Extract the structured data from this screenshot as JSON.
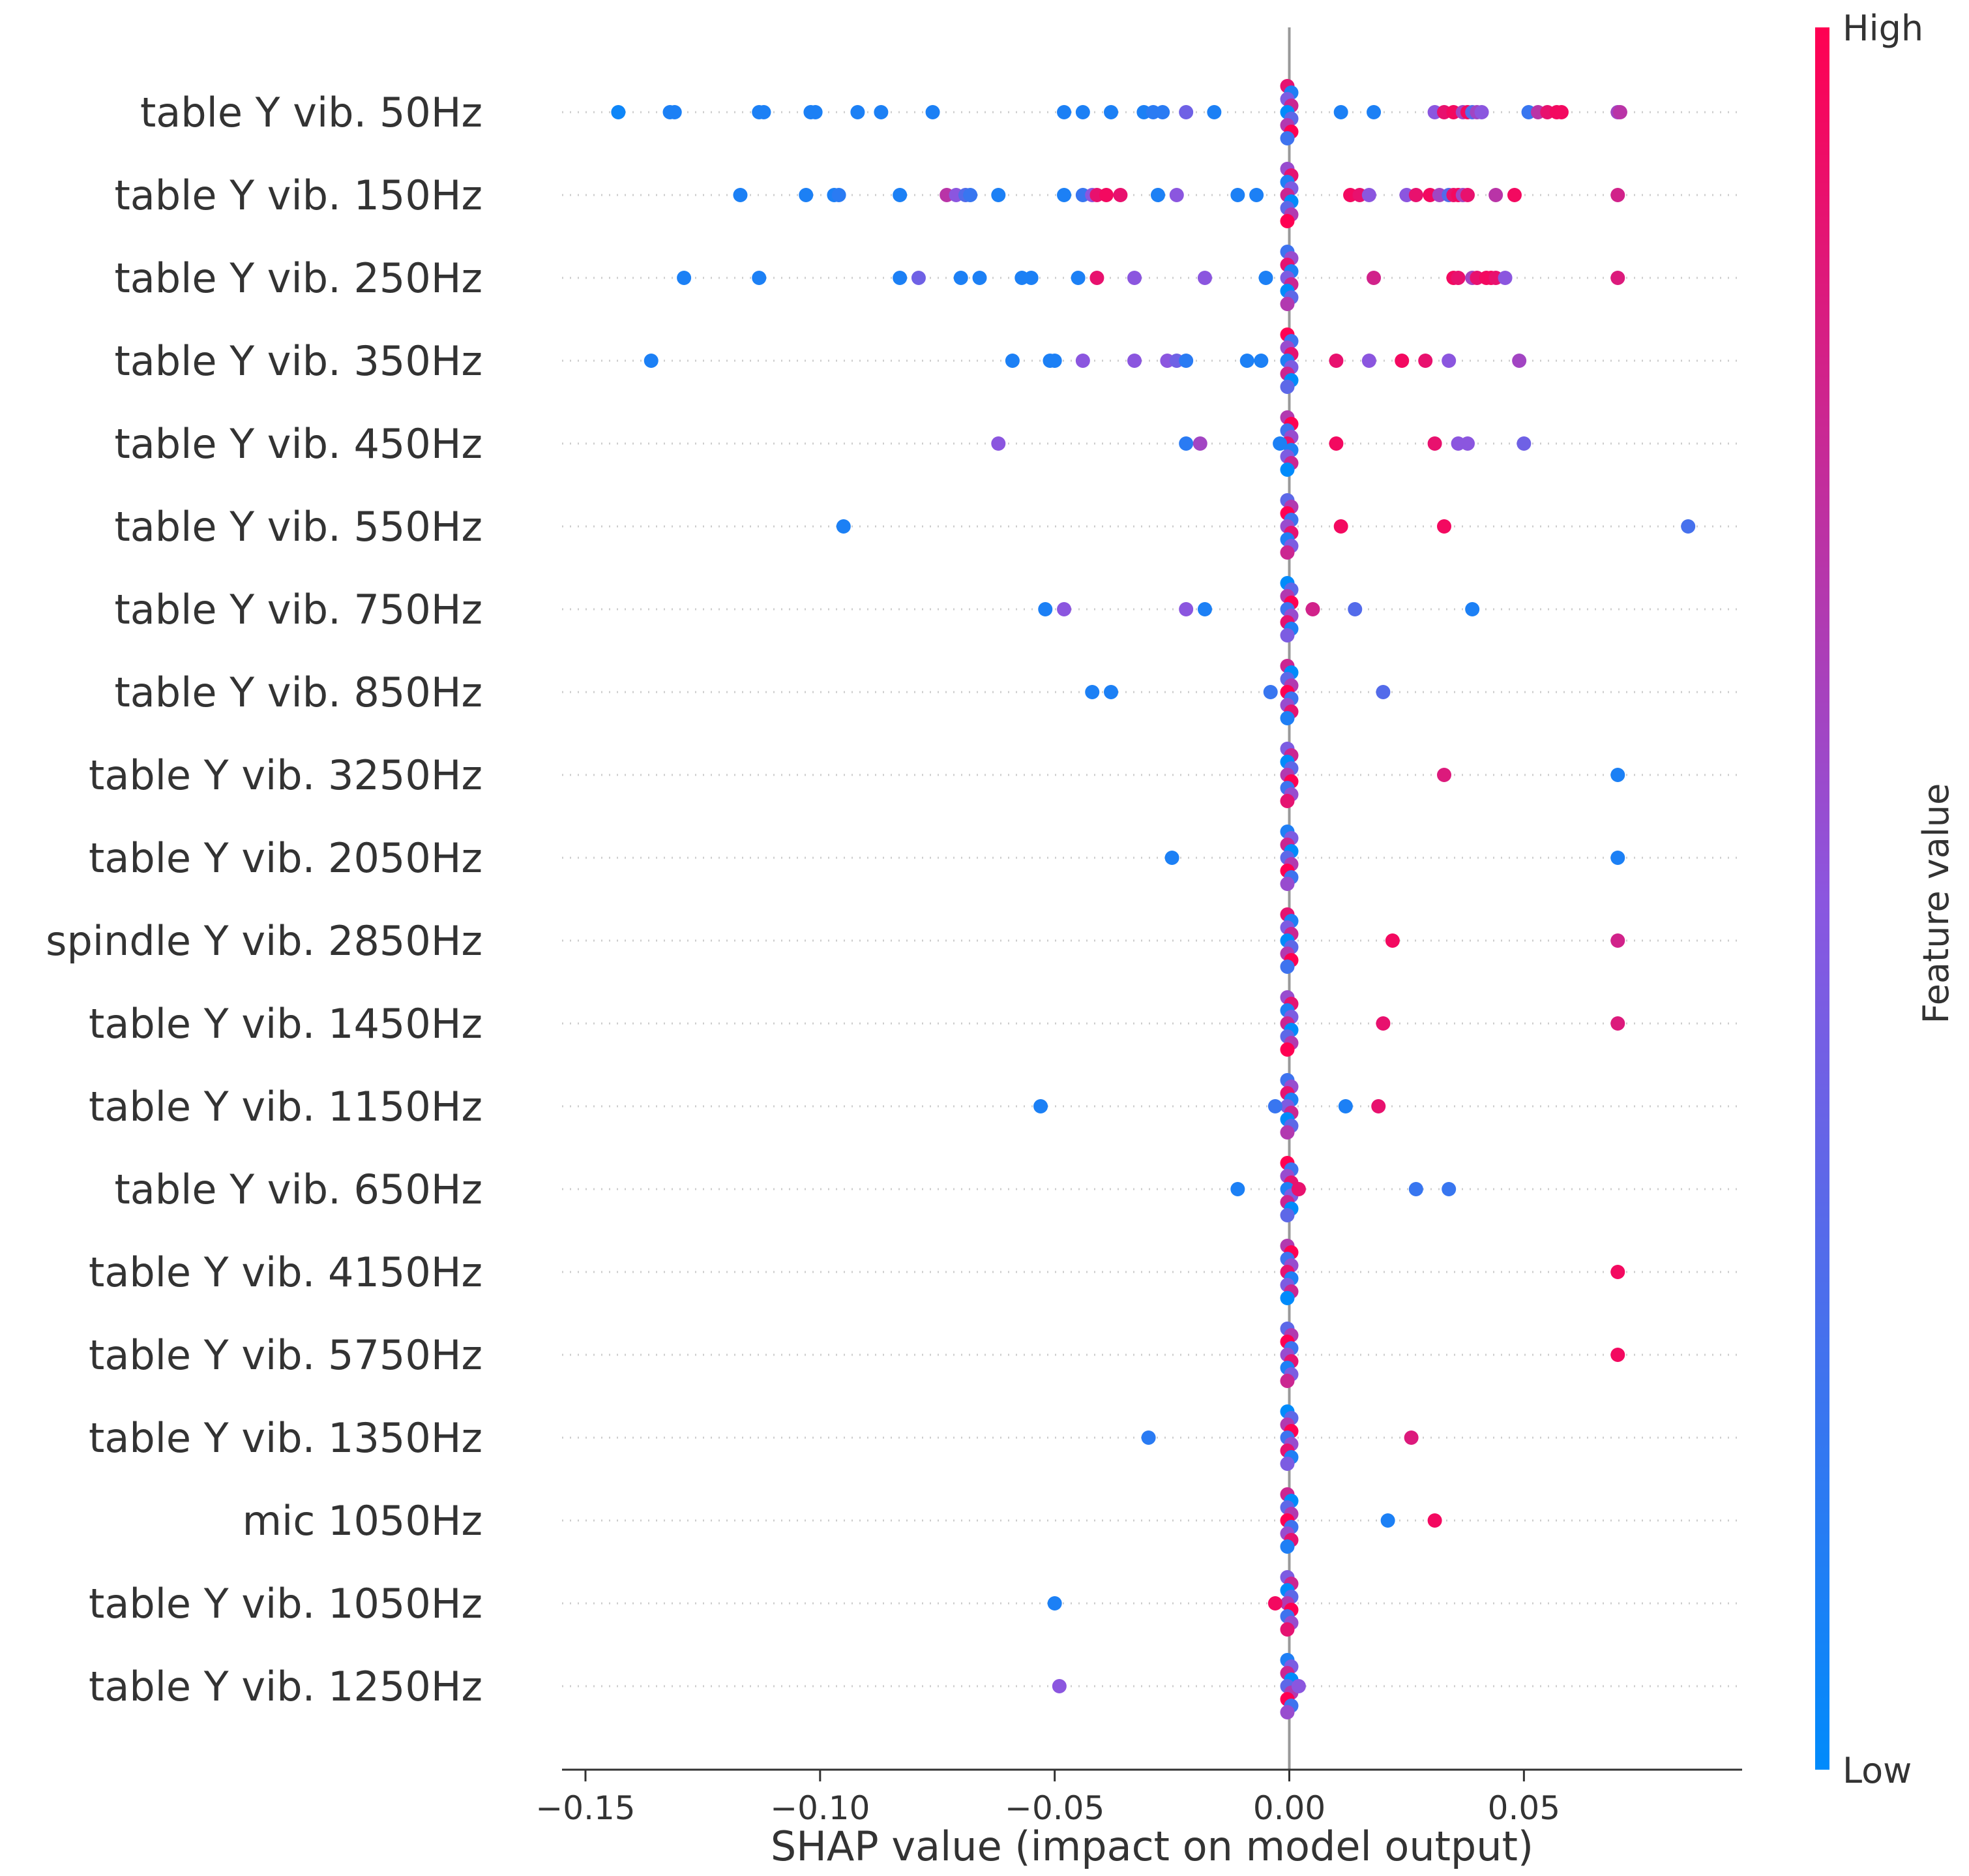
{
  "chart_data": {
    "type": "scatter",
    "subtype": "shap-beeswarm-summary",
    "xlabel": "SHAP value (impact on model output)",
    "xlim": [
      -0.155,
      0.0965
    ],
    "xticks": [
      -0.15,
      -0.1,
      -0.05,
      0.0,
      0.05
    ],
    "xtick_labels": [
      "−0.15",
      "−0.10",
      "−0.05",
      "0.00",
      "0.05"
    ],
    "colorbar": {
      "label": "Feature value",
      "high_label": "High",
      "low_label": "Low",
      "high_color": "#ff0052",
      "mid_color": "#8b56df",
      "low_color": "#008bfb"
    },
    "features": [
      {
        "name": "table Y vib. 50Hz",
        "points": [
          [
            -0.143,
            0.05
          ],
          [
            -0.132,
            0.1
          ],
          [
            -0.131,
            0.1
          ],
          [
            -0.113,
            0.1
          ],
          [
            -0.112,
            0.1
          ],
          [
            -0.102,
            0.1
          ],
          [
            -0.101,
            0.1
          ],
          [
            -0.092,
            0.1
          ],
          [
            -0.087,
            0.1
          ],
          [
            -0.076,
            0.1
          ],
          [
            -0.048,
            0.1
          ],
          [
            -0.044,
            0.1
          ],
          [
            -0.038,
            0.1
          ],
          [
            -0.031,
            0.1
          ],
          [
            -0.029,
            0.15
          ],
          [
            -0.027,
            0.15
          ],
          [
            -0.022,
            0.4
          ],
          [
            -0.016,
            0.1
          ],
          [
            0.011,
            0.1
          ],
          [
            0.018,
            0.1
          ],
          [
            0.031,
            0.5
          ],
          [
            0.033,
            0.9
          ],
          [
            0.035,
            0.95
          ],
          [
            0.037,
            0.6
          ],
          [
            0.038,
            0.95
          ],
          [
            0.039,
            0.3
          ],
          [
            0.04,
            0.6
          ],
          [
            0.041,
            0.5
          ],
          [
            0.051,
            0.2
          ],
          [
            0.053,
            0.7
          ],
          [
            0.055,
            0.9
          ],
          [
            0.057,
            0.95
          ],
          [
            0.058,
            0.95
          ],
          [
            0.07,
            0.6
          ],
          [
            0.0705,
            0.7
          ]
        ]
      },
      {
        "name": "table Y vib. 150Hz",
        "points": [
          [
            -0.117,
            0.1
          ],
          [
            -0.103,
            0.1
          ],
          [
            -0.097,
            0.1
          ],
          [
            -0.096,
            0.15
          ],
          [
            -0.083,
            0.1
          ],
          [
            -0.073,
            0.7
          ],
          [
            -0.071,
            0.5
          ],
          [
            -0.069,
            0.3
          ],
          [
            -0.068,
            0.2
          ],
          [
            -0.062,
            0.1
          ],
          [
            -0.048,
            0.1
          ],
          [
            -0.044,
            0.2
          ],
          [
            -0.042,
            0.5
          ],
          [
            -0.041,
            0.9
          ],
          [
            -0.039,
            0.95
          ],
          [
            -0.036,
            0.9
          ],
          [
            -0.028,
            0.1
          ],
          [
            -0.024,
            0.5
          ],
          [
            -0.011,
            0.1
          ],
          [
            -0.007,
            0.1
          ],
          [
            0.013,
            0.95
          ],
          [
            0.015,
            0.9
          ],
          [
            0.017,
            0.5
          ],
          [
            0.025,
            0.5
          ],
          [
            0.027,
            0.9
          ],
          [
            0.03,
            0.95
          ],
          [
            0.032,
            0.6
          ],
          [
            0.034,
            0.3
          ],
          [
            0.035,
            0.9
          ],
          [
            0.036,
            0.95
          ],
          [
            0.037,
            0.6
          ],
          [
            0.038,
            0.9
          ],
          [
            0.044,
            0.7
          ],
          [
            0.048,
            0.95
          ],
          [
            0.07,
            0.8
          ]
        ]
      },
      {
        "name": "table Y vib. 250Hz",
        "points": [
          [
            -0.129,
            0.1
          ],
          [
            -0.113,
            0.1
          ],
          [
            -0.083,
            0.1
          ],
          [
            -0.079,
            0.4
          ],
          [
            -0.07,
            0.1
          ],
          [
            -0.066,
            0.1
          ],
          [
            -0.057,
            0.1
          ],
          [
            -0.055,
            0.1
          ],
          [
            -0.045,
            0.1
          ],
          [
            -0.041,
            0.9
          ],
          [
            -0.033,
            0.5
          ],
          [
            -0.018,
            0.5
          ],
          [
            -0.005,
            0.1
          ],
          [
            0.018,
            0.8
          ],
          [
            0.035,
            0.95
          ],
          [
            0.036,
            0.9
          ],
          [
            0.039,
            0.6
          ],
          [
            0.04,
            0.9
          ],
          [
            0.042,
            0.95
          ],
          [
            0.043,
            0.95
          ],
          [
            0.044,
            0.9
          ],
          [
            0.046,
            0.5
          ],
          [
            0.07,
            0.85
          ]
        ]
      },
      {
        "name": "table Y vib. 350Hz",
        "points": [
          [
            -0.136,
            0.1
          ],
          [
            -0.059,
            0.1
          ],
          [
            -0.051,
            0.1
          ],
          [
            -0.05,
            0.1
          ],
          [
            -0.044,
            0.5
          ],
          [
            -0.033,
            0.5
          ],
          [
            -0.026,
            0.5
          ],
          [
            -0.024,
            0.4
          ],
          [
            -0.022,
            0.15
          ],
          [
            -0.009,
            0.1
          ],
          [
            -0.006,
            0.1
          ],
          [
            0.01,
            0.9
          ],
          [
            0.017,
            0.5
          ],
          [
            0.024,
            0.95
          ],
          [
            0.029,
            0.9
          ],
          [
            0.034,
            0.5
          ],
          [
            0.049,
            0.6
          ]
        ]
      },
      {
        "name": "table Y vib. 450Hz",
        "points": [
          [
            -0.062,
            0.5
          ],
          [
            -0.022,
            0.15
          ],
          [
            -0.019,
            0.6
          ],
          [
            -0.002,
            0.1
          ],
          [
            0.01,
            0.95
          ],
          [
            0.031,
            0.9
          ],
          [
            0.036,
            0.5
          ],
          [
            0.038,
            0.5
          ],
          [
            0.05,
            0.4
          ]
        ]
      },
      {
        "name": "table Y vib. 550Hz",
        "points": [
          [
            -0.095,
            0.1
          ],
          [
            0.011,
            0.95
          ],
          [
            0.033,
            0.95
          ],
          [
            0.085,
            0.25
          ]
        ]
      },
      {
        "name": "table Y vib. 750Hz",
        "points": [
          [
            -0.052,
            0.1
          ],
          [
            -0.048,
            0.5
          ],
          [
            -0.022,
            0.5
          ],
          [
            -0.018,
            0.1
          ],
          [
            0.005,
            0.8
          ],
          [
            0.014,
            0.3
          ],
          [
            0.039,
            0.1
          ]
        ]
      },
      {
        "name": "table Y vib. 850Hz",
        "points": [
          [
            -0.042,
            0.1
          ],
          [
            -0.038,
            0.1
          ],
          [
            -0.004,
            0.2
          ],
          [
            0.02,
            0.3
          ]
        ]
      },
      {
        "name": "table Y vib. 3250Hz",
        "points": [
          [
            0.033,
            0.85
          ],
          [
            0.07,
            0.1
          ]
        ]
      },
      {
        "name": "table Y vib. 2050Hz",
        "points": [
          [
            -0.025,
            0.1
          ],
          [
            0.07,
            0.1
          ]
        ]
      },
      {
        "name": "spindle Y vib. 2850Hz",
        "points": [
          [
            0.022,
            0.95
          ],
          [
            0.07,
            0.8
          ]
        ]
      },
      {
        "name": "table Y vib. 1450Hz",
        "points": [
          [
            0.02,
            0.9
          ],
          [
            0.07,
            0.85
          ]
        ]
      },
      {
        "name": "table Y vib. 1150Hz",
        "points": [
          [
            -0.053,
            0.1
          ],
          [
            -0.003,
            0.2
          ],
          [
            0.012,
            0.1
          ],
          [
            0.019,
            0.9
          ]
        ]
      },
      {
        "name": "table Y vib. 650Hz",
        "points": [
          [
            -0.011,
            0.1
          ],
          [
            0.002,
            0.9
          ],
          [
            0.027,
            0.2
          ],
          [
            0.034,
            0.2
          ]
        ]
      },
      {
        "name": "table Y vib. 4150Hz",
        "points": [
          [
            0.07,
            0.95
          ]
        ]
      },
      {
        "name": "table Y vib. 5750Hz",
        "points": [
          [
            0.07,
            0.95
          ]
        ]
      },
      {
        "name": "table Y vib. 1350Hz",
        "points": [
          [
            -0.03,
            0.15
          ],
          [
            0.026,
            0.85
          ]
        ]
      },
      {
        "name": "mic 1050Hz",
        "points": [
          [
            0.021,
            0.1
          ],
          [
            0.031,
            0.95
          ]
        ]
      },
      {
        "name": "table Y vib. 1050Hz",
        "points": [
          [
            -0.05,
            0.1
          ],
          [
            -0.003,
            0.95
          ]
        ]
      },
      {
        "name": "table Y vib. 1250Hz",
        "points": [
          [
            -0.049,
            0.5
          ],
          [
            0.002,
            0.5
          ]
        ]
      }
    ]
  }
}
